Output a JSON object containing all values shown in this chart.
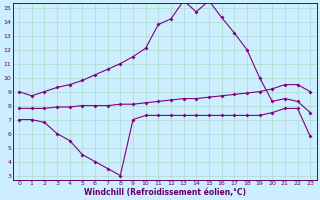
{
  "line1_x": [
    0,
    1,
    2,
    3,
    4,
    5,
    6,
    7,
    8,
    9,
    10,
    11,
    12,
    13,
    14,
    15,
    16,
    17,
    18,
    19,
    20,
    21,
    22,
    23
  ],
  "line1_y": [
    9.0,
    8.7,
    9.0,
    9.3,
    9.5,
    9.8,
    10.2,
    10.6,
    11.0,
    11.5,
    12.1,
    13.8,
    14.2,
    15.5,
    14.7,
    15.5,
    14.3,
    13.2,
    12.0,
    10.0,
    8.3,
    8.5,
    8.3,
    7.5
  ],
  "line2_x": [
    0,
    1,
    2,
    3,
    4,
    5,
    6,
    7,
    8,
    9,
    10,
    11,
    12,
    13,
    14,
    15,
    16,
    17,
    18,
    19,
    20,
    21,
    22,
    23
  ],
  "line2_y": [
    7.8,
    7.8,
    7.8,
    7.9,
    7.9,
    8.0,
    8.0,
    8.0,
    8.1,
    8.1,
    8.2,
    8.3,
    8.4,
    8.5,
    8.5,
    8.6,
    8.7,
    8.8,
    8.9,
    9.0,
    9.2,
    9.5,
    9.5,
    9.0
  ],
  "line3_x": [
    0,
    1,
    2,
    3,
    4,
    5,
    6,
    7,
    8,
    9,
    10,
    11,
    12,
    13,
    14,
    15,
    16,
    17,
    18,
    19,
    20,
    21,
    22,
    23
  ],
  "line3_y": [
    7.0,
    7.0,
    6.8,
    6.0,
    5.5,
    4.5,
    4.0,
    3.5,
    3.0,
    7.0,
    7.3,
    7.3,
    7.3,
    7.3,
    7.3,
    7.3,
    7.3,
    7.3,
    7.3,
    7.3,
    7.5,
    7.8,
    7.8,
    5.8
  ],
  "line_color": "#800080",
  "bg_color": "#cceeff",
  "grid_color": "#aaddcc",
  "axis_color": "#660066",
  "xlabel": "Windchill (Refroidissement éolien,°C)",
  "ylim_min": 3,
  "ylim_max": 15,
  "xlim_min": 0,
  "xlim_max": 23,
  "yticks": [
    3,
    4,
    5,
    6,
    7,
    8,
    9,
    10,
    11,
    12,
    13,
    14,
    15
  ],
  "xticks": [
    0,
    1,
    2,
    3,
    4,
    5,
    6,
    7,
    8,
    9,
    10,
    11,
    12,
    13,
    14,
    15,
    16,
    17,
    18,
    19,
    20,
    21,
    22,
    23
  ]
}
